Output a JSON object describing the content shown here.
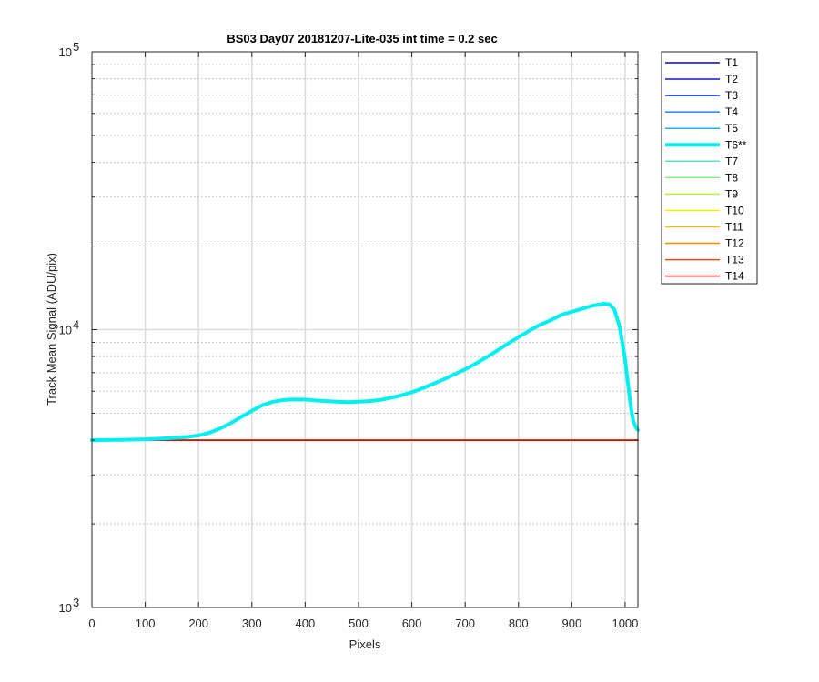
{
  "chart_data": {
    "type": "line",
    "title": "BS03 Day07 20181207-Lite-035 int time = 0.2 sec",
    "xlabel": "Pixels",
    "ylabel": "Track Mean Signal (ADU/pix)",
    "xlim": [
      0,
      1024
    ],
    "ylim": [
      1000,
      100000
    ],
    "yscale": "log",
    "xticks": [
      0,
      100,
      200,
      300,
      400,
      500,
      600,
      700,
      800,
      900,
      1000
    ],
    "xtick_labels": [
      "0",
      "100",
      "200",
      "300",
      "400",
      "500",
      "600",
      "700",
      "800",
      "900",
      "1000"
    ],
    "yticks_major": [
      1000,
      10000,
      100000
    ],
    "ytick_labels": [
      {
        "base": "10",
        "exp": "3"
      },
      {
        "base": "10",
        "exp": "4"
      },
      {
        "base": "10",
        "exp": "5"
      }
    ],
    "grid": true,
    "legend_position": "outside-right",
    "series": [
      {
        "name": "T1",
        "color": "#0a0a8f",
        "width": 1.5,
        "x": [
          0,
          1024
        ],
        "y": [
          4000,
          4000
        ]
      },
      {
        "name": "T2",
        "color": "#0d18c4",
        "width": 1.5,
        "x": [
          0,
          1024
        ],
        "y": [
          4000,
          4000
        ]
      },
      {
        "name": "T3",
        "color": "#1846e0",
        "width": 1.5,
        "x": [
          0,
          1024
        ],
        "y": [
          4000,
          4000
        ]
      },
      {
        "name": "T4",
        "color": "#2f7de8",
        "width": 1.5,
        "x": [
          0,
          1024
        ],
        "y": [
          4000,
          4000
        ]
      },
      {
        "name": "T5",
        "color": "#1fb2f0",
        "width": 1.5,
        "x": [
          0,
          1024
        ],
        "y": [
          4000,
          4000
        ]
      },
      {
        "name": "T6**",
        "color": "#00f0f0",
        "width": 4,
        "x": [
          0,
          50,
          100,
          150,
          180,
          200,
          220,
          240,
          260,
          280,
          300,
          320,
          340,
          360,
          380,
          400,
          420,
          440,
          460,
          480,
          500,
          520,
          540,
          560,
          580,
          600,
          620,
          640,
          660,
          680,
          700,
          720,
          740,
          760,
          780,
          800,
          820,
          840,
          860,
          880,
          900,
          920,
          940,
          960,
          970,
          980,
          990,
          1000,
          1010,
          1015,
          1020,
          1024
        ],
        "y": [
          4000,
          4010,
          4030,
          4070,
          4110,
          4160,
          4250,
          4400,
          4600,
          4850,
          5100,
          5350,
          5500,
          5580,
          5610,
          5600,
          5560,
          5530,
          5500,
          5480,
          5500,
          5530,
          5580,
          5680,
          5800,
          5950,
          6150,
          6380,
          6620,
          6900,
          7200,
          7550,
          7950,
          8400,
          8900,
          9400,
          9900,
          10400,
          10800,
          11300,
          11600,
          11900,
          12200,
          12400,
          12350,
          11800,
          10200,
          7800,
          5400,
          4700,
          4450,
          4350
        ]
      },
      {
        "name": "T7",
        "color": "#5ce0c0",
        "width": 1.5,
        "x": [
          0,
          1024
        ],
        "y": [
          4000,
          4000
        ]
      },
      {
        "name": "T8",
        "color": "#7fef7f",
        "width": 1.5,
        "x": [
          0,
          1024
        ],
        "y": [
          4000,
          4000
        ]
      },
      {
        "name": "T9",
        "color": "#b4ef3a",
        "width": 1.5,
        "x": [
          0,
          1024
        ],
        "y": [
          4000,
          4000
        ]
      },
      {
        "name": "T10",
        "color": "#f0f000",
        "width": 1.5,
        "x": [
          0,
          1024
        ],
        "y": [
          4000,
          4000
        ]
      },
      {
        "name": "T11",
        "color": "#f0c000",
        "width": 1.5,
        "x": [
          0,
          1024
        ],
        "y": [
          4000,
          4000
        ]
      },
      {
        "name": "T12",
        "color": "#f08c00",
        "width": 1.5,
        "x": [
          0,
          1024
        ],
        "y": [
          4000,
          4000
        ]
      },
      {
        "name": "T13",
        "color": "#f04a10",
        "width": 1.5,
        "x": [
          0,
          1024
        ],
        "y": [
          4000,
          4000
        ]
      },
      {
        "name": "T14",
        "color": "#e00000",
        "width": 1.5,
        "x": [
          0,
          1024
        ],
        "y": [
          4000,
          4000
        ]
      }
    ]
  }
}
